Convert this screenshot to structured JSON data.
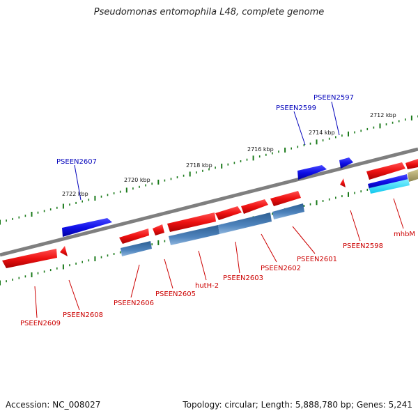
{
  "title": "Pseudomonas entomophila L48, complete genome",
  "footer": {
    "accession": "Accession: NC_008027",
    "topology": "Topology: circular; Length: 5,888,780 bp; Genes: 5,241"
  },
  "colors": {
    "backbone": "#7f7f7f",
    "tick": "#1a7a1a",
    "gene_red": "#ee1111",
    "gene_blue": "#1010e8",
    "gene_steel": "#4f84bd",
    "gene_cyan": "#3fe0ff",
    "gene_khaki": "#b5aa6a",
    "label_red": "#cc0000",
    "label_blue": "#0000bb"
  },
  "scale_labels": [
    "2712 kbp",
    "2714 kbp",
    "2716 kbp",
    "2718 kbp",
    "2720 kbp",
    "2722 kbp"
  ],
  "gene_labels_top": [
    "PSEEN2597",
    "PSEEN2599",
    "PSEEN2607"
  ],
  "gene_labels_bottom": [
    "mhbM",
    "PSEEN2598",
    "PSEEN2601",
    "PSEEN2602",
    "PSEEN2603",
    "hutH-2",
    "PSEEN2605",
    "PSEEN2606",
    "PSEEN2608",
    "PSEEN2609"
  ]
}
